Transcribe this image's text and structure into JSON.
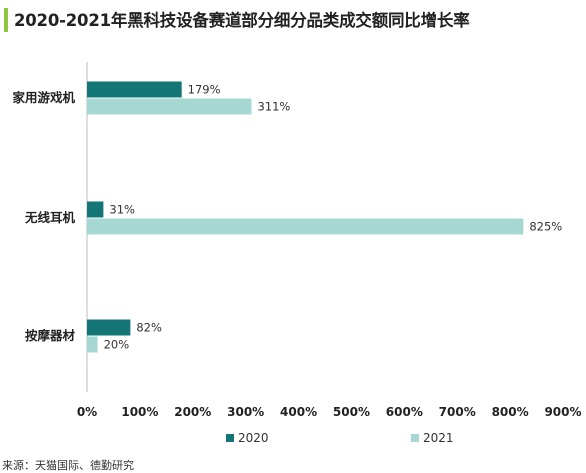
{
  "title": "2020-2021年黑科技设备赛道部分细分品类成交额同比增长率",
  "source": "来源：天猫国际、德勤研究",
  "colors": {
    "s2020": "#137575",
    "s2021": "#a6d8d3",
    "axis": "#bdbdbd",
    "text": "#222222",
    "accent": "#8dc63f"
  },
  "chart_data": {
    "type": "bar",
    "orientation": "horizontal",
    "title": "2020-2021年黑科技设备赛道部分细分品类成交额同比增长率",
    "categories": [
      "家用游戏机",
      "无线耳机",
      "按摩器材"
    ],
    "series": [
      {
        "name": "2020",
        "values": [
          179,
          31,
          82
        ],
        "labels": [
          "179%",
          "31%",
          "82%"
        ]
      },
      {
        "name": "2021",
        "values": [
          311,
          825,
          20
        ],
        "labels": [
          "311%",
          "825%",
          "20%"
        ]
      }
    ],
    "xlim": [
      0,
      900
    ],
    "xticks": [
      "0%",
      "100%",
      "200%",
      "300%",
      "400%",
      "500%",
      "600%",
      "700%",
      "800%",
      "900%"
    ],
    "grid": false,
    "legend": "bottom"
  }
}
